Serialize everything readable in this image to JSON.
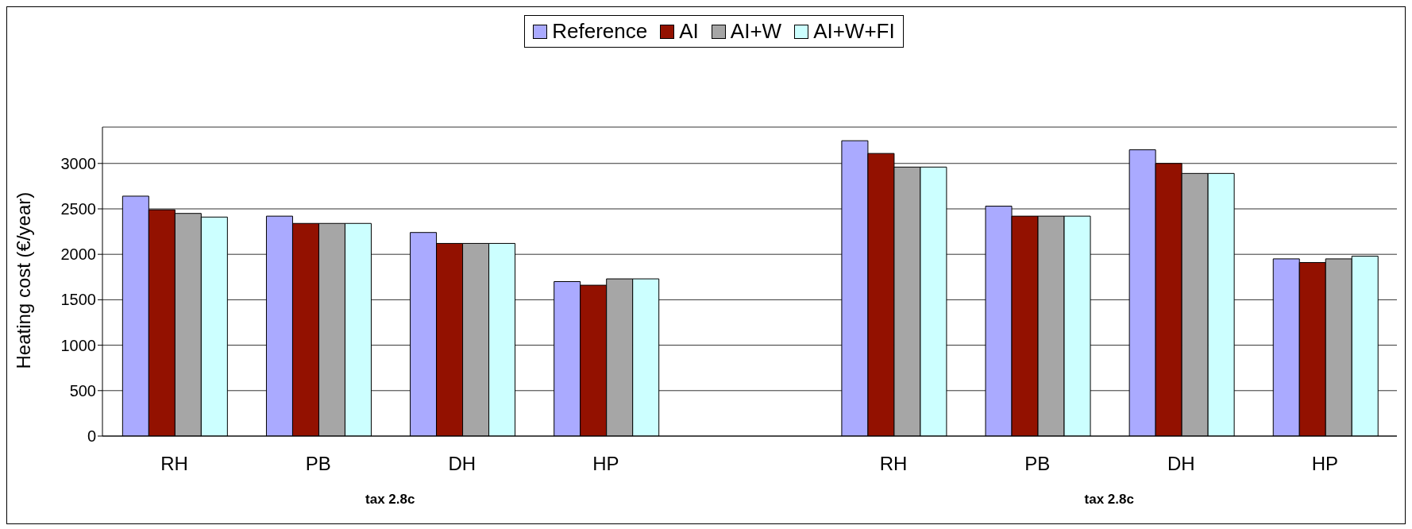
{
  "chart_data": {
    "type": "bar",
    "ylabel": "Heating cost  (€/year)",
    "categories": [
      "RH",
      "PB",
      "DH",
      "HP",
      null,
      "RH",
      "PB",
      "DH",
      "HP"
    ],
    "series": [
      {
        "name": "Reference",
        "color": "#aaaaff",
        "values": [
          2640,
          2420,
          2240,
          1700,
          null,
          3250,
          2530,
          3150,
          1950
        ]
      },
      {
        "name": "AI",
        "color": "#931100",
        "values": [
          2490,
          2340,
          2120,
          1660,
          null,
          3110,
          2420,
          3000,
          1910
        ]
      },
      {
        "name": "AI+W",
        "color": "#a6a6a6",
        "values": [
          2450,
          2340,
          2120,
          1730,
          null,
          2960,
          2420,
          2890,
          1950
        ]
      },
      {
        "name": "AI+W+FI",
        "color": "#ccffff",
        "values": [
          2410,
          2340,
          2120,
          1730,
          null,
          2960,
          2420,
          2890,
          1980
        ]
      }
    ],
    "ylim": [
      0,
      3400
    ],
    "yticks": [
      0,
      500,
      1000,
      1500,
      2000,
      2500,
      3000
    ],
    "grid": "y",
    "legend": "top",
    "annotations": [
      "tax 2.8c",
      "tax 2.8c"
    ]
  }
}
